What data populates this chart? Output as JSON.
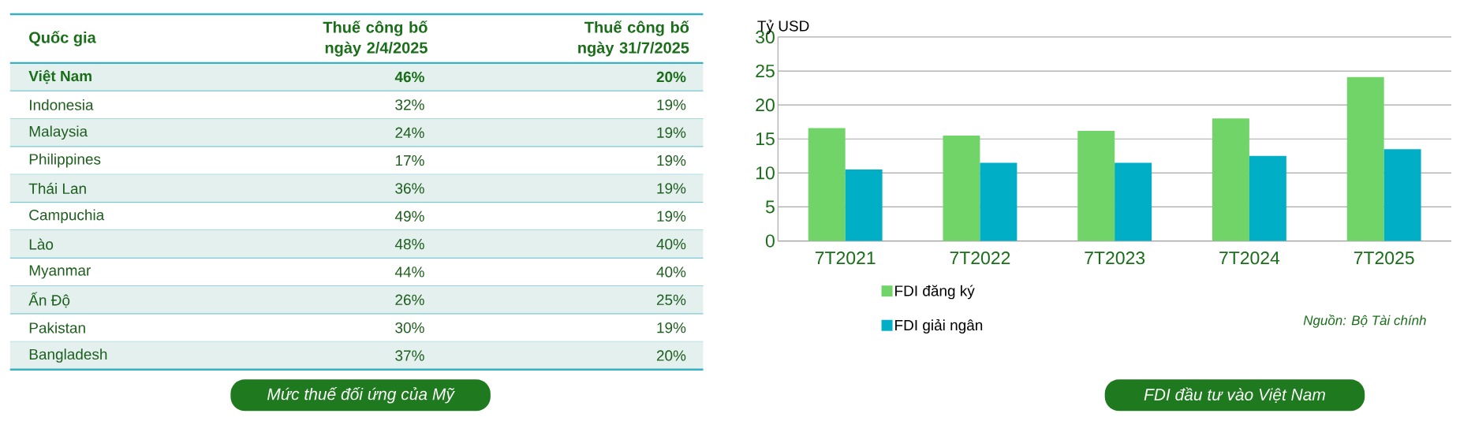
{
  "chart_data": [
    {
      "type": "other",
      "title": "Mức thuế đối ứng của Mỹ",
      "xlabel": "Quốc gia",
      "categories": [
        "Việt Nam",
        "Indonesia",
        "Malaysia",
        "Philippines",
        "Thái Lan",
        "Campuchia",
        "Lào",
        "Myanmar",
        "Ấn Độ",
        "Pakistan",
        "Bangladesh"
      ],
      "series": [
        {
          "name": "Thuế công bố ngày 2/4/2025",
          "values": [
            46,
            32,
            24,
            17,
            36,
            49,
            48,
            44,
            26,
            30,
            37
          ],
          "value_labels": [
            "46%",
            "32%",
            "24%",
            "17%",
            "36%",
            "49%",
            "48%",
            "44%",
            "26%",
            "30%",
            "37%"
          ]
        },
        {
          "name": "Thuế công bố ngày 31/7/2025",
          "values": [
            20,
            19,
            19,
            19,
            19,
            19,
            40,
            40,
            25,
            19,
            20
          ],
          "value_labels": [
            "20%",
            "19%",
            "19%",
            "19%",
            "19%",
            "19%",
            "40%",
            "40%",
            "25%",
            "19%",
            "20%"
          ]
        }
      ]
    },
    {
      "type": "bar",
      "title": "FDI đầu tư vào Việt Nam",
      "ylabel": "Tỷ USD",
      "annotations": [
        "Nguồn: Bộ Tài chính"
      ],
      "categories": [
        "7T2021",
        "7T2022",
        "7T2023",
        "7T2024",
        "7T2025"
      ],
      "series": [
        {
          "name": "FDI đăng ký",
          "color": "#70d468",
          "values": [
            16.6,
            15.5,
            16.2,
            18.0,
            24.1
          ]
        },
        {
          "name": "FDI giải ngân",
          "color": "#00afc6",
          "values": [
            10.5,
            11.5,
            11.5,
            12.5,
            13.5
          ]
        }
      ],
      "ylim": [
        0,
        30
      ],
      "yticks": [
        0,
        5,
        10,
        15,
        20,
        25,
        30
      ],
      "grid": "y",
      "legend": "bottom"
    }
  ]
}
